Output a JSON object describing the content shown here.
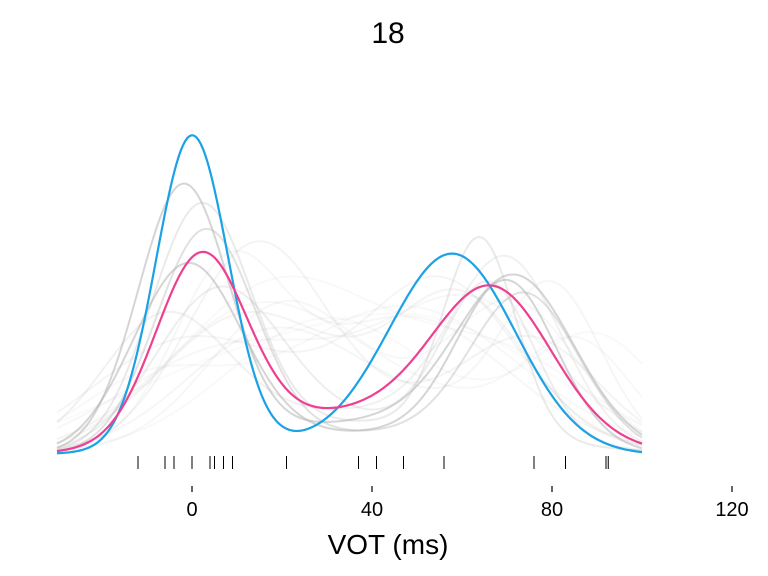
{
  "chart_data": {
    "type": "line",
    "title": "18",
    "xlabel": "VOT (ms)",
    "ylabel": "",
    "xlim": [
      -30,
      120
    ],
    "grid": false,
    "legend": "none",
    "x_ticks": [
      0,
      40,
      80,
      120
    ],
    "x_tick_labels": [
      "0",
      "40",
      "80",
      "120"
    ],
    "x_domain": [
      -30,
      100
    ],
    "rug_x": [
      -12,
      -6,
      -4,
      0,
      4,
      5,
      7,
      9,
      21,
      37,
      41,
      47,
      56,
      76,
      83,
      92,
      92.5
    ],
    "colors": {
      "highlight_blue": "#1ba1e6",
      "highlight_pink": "#ee3f91",
      "background_curves": "#b3b3b3"
    },
    "series": [
      {
        "role": "highlight",
        "color": "#1ba1e6",
        "components": [
          [
            0.29,
            0,
            8
          ],
          [
            0.18,
            58,
            14
          ],
          [
            0.01,
            30,
            30
          ]
        ]
      },
      {
        "role": "highlight",
        "color": "#ee3f91",
        "components": [
          [
            0.17,
            2,
            10
          ],
          [
            0.13,
            67,
            13
          ],
          [
            0.04,
            40,
            30
          ]
        ]
      },
      {
        "role": "background",
        "opacity": 0.55,
        "components": [
          [
            0.24,
            -2,
            10
          ],
          [
            0.15,
            72,
            13
          ],
          [
            0.03,
            40,
            30
          ]
        ]
      },
      {
        "role": "background",
        "opacity": 0.55,
        "components": [
          [
            0.17,
            -1,
            12
          ],
          [
            0.15,
            70,
            11
          ],
          [
            0.02,
            40,
            30
          ]
        ]
      },
      {
        "role": "background",
        "opacity": 0.4,
        "components": [
          [
            0.2,
            3,
            11
          ],
          [
            0.14,
            74,
            12
          ],
          [
            0.02,
            40,
            30
          ]
        ]
      },
      {
        "role": "background",
        "opacity": 0.28,
        "components": [
          [
            0.22,
            2,
            11
          ],
          [
            0.18,
            64,
            8
          ],
          [
            0.03,
            40,
            30
          ]
        ]
      },
      {
        "role": "background",
        "opacity": 0.22,
        "components": [
          [
            0.14,
            6,
            14
          ],
          [
            0.14,
            66,
            10
          ],
          [
            0.03,
            40,
            30
          ]
        ]
      },
      {
        "role": "background",
        "opacity": 0.18,
        "components": [
          [
            0.12,
            -6,
            14
          ],
          [
            0.16,
            70,
            12
          ],
          [
            0.04,
            40,
            30
          ]
        ]
      },
      {
        "role": "background",
        "opacity": 0.15,
        "components": [
          [
            0.1,
            10,
            18
          ],
          [
            0.11,
            60,
            14
          ],
          [
            0.05,
            40,
            30
          ]
        ]
      },
      {
        "role": "background",
        "opacity": 0.14,
        "components": [
          [
            0.17,
            14,
            15
          ],
          [
            0.09,
            76,
            15
          ],
          [
            0.04,
            40,
            30
          ]
        ]
      },
      {
        "role": "background",
        "opacity": 0.13,
        "components": [
          [
            0.09,
            -3,
            20
          ],
          [
            0.12,
            56,
            16
          ],
          [
            0.05,
            40,
            30
          ]
        ]
      },
      {
        "role": "background",
        "opacity": 0.12,
        "components": [
          [
            0.08,
            16,
            18
          ],
          [
            0.14,
            80,
            11
          ],
          [
            0.05,
            40,
            30
          ]
        ]
      },
      {
        "role": "background",
        "opacity": 0.11,
        "components": [
          [
            0.15,
            8,
            12
          ],
          [
            0.08,
            50,
            20
          ],
          [
            0.05,
            40,
            30
          ]
        ]
      },
      {
        "role": "background",
        "opacity": 0.1,
        "components": [
          [
            0.07,
            4,
            22
          ],
          [
            0.1,
            64,
            18
          ],
          [
            0.06,
            40,
            30
          ]
        ]
      },
      {
        "role": "background",
        "opacity": 0.1,
        "components": [
          [
            0.11,
            20,
            16
          ],
          [
            0.12,
            72,
            14
          ],
          [
            0.04,
            40,
            30
          ]
        ]
      },
      {
        "role": "background",
        "opacity": 0.09,
        "components": [
          [
            0.1,
            12,
            20
          ],
          [
            0.09,
            86,
            12
          ],
          [
            0.06,
            40,
            30
          ]
        ]
      },
      {
        "role": "background",
        "opacity": 0.09,
        "components": [
          [
            0.06,
            -10,
            16
          ],
          [
            0.08,
            50,
            24
          ],
          [
            0.06,
            40,
            30
          ]
        ]
      },
      {
        "role": "background",
        "opacity": 0.08,
        "components": [
          [
            0.13,
            18,
            22
          ],
          [
            0.07,
            70,
            20
          ],
          [
            0.04,
            40,
            30
          ]
        ]
      },
      {
        "role": "background",
        "opacity": 0.08,
        "components": [
          [
            0.08,
            28,
            20
          ],
          [
            0.1,
            90,
            14
          ],
          [
            0.05,
            40,
            30
          ]
        ]
      },
      {
        "role": "background",
        "opacity": 0.07,
        "components": [
          [
            0.05,
            0,
            26
          ],
          [
            0.06,
            60,
            26
          ],
          [
            0.07,
            40,
            30
          ]
        ]
      }
    ]
  }
}
